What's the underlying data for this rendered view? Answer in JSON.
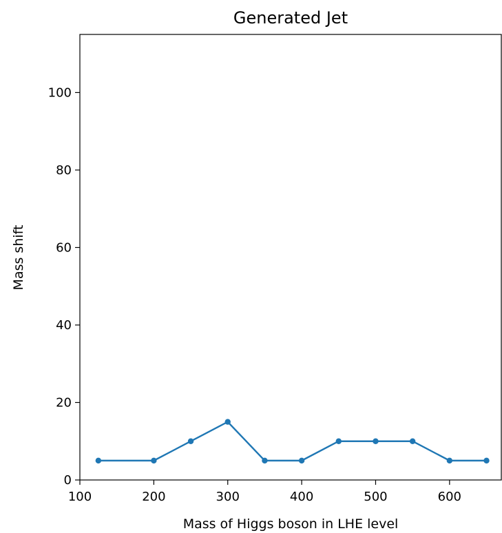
{
  "chart_data": {
    "type": "line",
    "title": "Generated Jet",
    "xlabel": "Mass of Higgs boson in LHE level",
    "ylabel": "Mass shift",
    "xlim": [
      100,
      670
    ],
    "ylim": [
      0,
      115
    ],
    "xticks": [
      100,
      200,
      300,
      400,
      500,
      600
    ],
    "yticks": [
      0,
      20,
      40,
      60,
      80,
      100
    ],
    "grid": false,
    "color": "#1f77b4",
    "series": [
      {
        "x": [
          125,
          200,
          250,
          300,
          350,
          400,
          450,
          500,
          550,
          600,
          650
        ],
        "y": [
          5,
          5,
          10,
          15,
          5,
          5,
          10,
          10,
          10,
          5,
          5
        ]
      }
    ]
  }
}
